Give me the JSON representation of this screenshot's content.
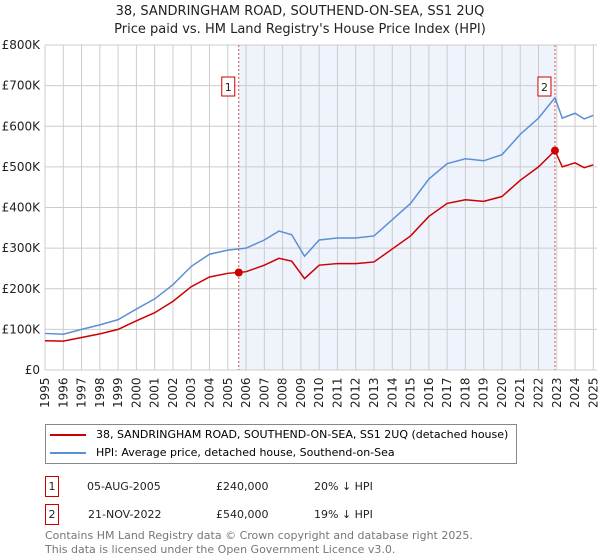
{
  "chart_data": {
    "type": "line",
    "title": "38, SANDRINGHAM ROAD, SOUTHEND-ON-SEA, SS1 2UQ",
    "subtitle": "Price paid vs. HM Land Registry's House Price Index (HPI)",
    "xlim": [
      1995,
      2025.2
    ],
    "ylim": [
      0,
      800000
    ],
    "y_ticks": [
      {
        "v": 0,
        "label": "£0"
      },
      {
        "v": 100000,
        "label": "£100K"
      },
      {
        "v": 200000,
        "label": "£200K"
      },
      {
        "v": 300000,
        "label": "£300K"
      },
      {
        "v": 400000,
        "label": "£400K"
      },
      {
        "v": 500000,
        "label": "£500K"
      },
      {
        "v": 600000,
        "label": "£600K"
      },
      {
        "v": 700000,
        "label": "£700K"
      },
      {
        "v": 800000,
        "label": "£800K"
      }
    ],
    "x_ticks": [
      "1995",
      "1996",
      "1997",
      "1998",
      "1999",
      "2000",
      "2001",
      "2002",
      "2003",
      "2004",
      "2005",
      "2006",
      "2007",
      "2008",
      "2009",
      "2010",
      "2011",
      "2012",
      "2013",
      "2014",
      "2015",
      "2016",
      "2017",
      "2018",
      "2019",
      "2020",
      "2021",
      "2022",
      "2023",
      "2024",
      "2025"
    ],
    "grid": true,
    "legend_placement": "below",
    "series": [
      {
        "name": "38, SANDRINGHAM ROAD, SOUTHEND-ON-SEA, SS1 2UQ (detached house)",
        "color": "#cc0000",
        "x": [
          1995,
          1996,
          1997,
          1998,
          1999,
          2000,
          2001,
          2002,
          2003,
          2004,
          2005,
          2005.6,
          2006,
          2007,
          2007.8,
          2008.5,
          2009.2,
          2010,
          2011,
          2012,
          2013,
          2014,
          2015,
          2016,
          2017,
          2018,
          2019,
          2020,
          2021,
          2022,
          2022.9,
          2023.3,
          2024,
          2024.5,
          2025
        ],
        "y": [
          72000,
          71000,
          80000,
          89000,
          100000,
          121000,
          141000,
          169000,
          205000,
          229000,
          238000,
          240000,
          242000,
          258000,
          275000,
          268000,
          225000,
          258000,
          262000,
          262000,
          266000,
          298000,
          330000,
          378000,
          410000,
          419000,
          415000,
          427000,
          467000,
          500000,
          540000,
          500000,
          510000,
          498000,
          505000
        ]
      },
      {
        "name": "HPI: Average price, detached house, Southend-on-Sea",
        "color": "#5b8fd6",
        "x": [
          1995,
          1996,
          1997,
          1998,
          1999,
          2000,
          2001,
          2002,
          2003,
          2004,
          2005,
          2005.6,
          2006,
          2007,
          2007.8,
          2008.5,
          2009.2,
          2010,
          2011,
          2012,
          2013,
          2014,
          2015,
          2016,
          2017,
          2018,
          2019,
          2020,
          2021,
          2022,
          2022.9,
          2023.3,
          2024,
          2024.5,
          2025
        ],
        "y": [
          90000,
          88000,
          100000,
          111000,
          124000,
          150000,
          175000,
          210000,
          255000,
          285000,
          295000,
          298000,
          300000,
          320000,
          342000,
          333000,
          280000,
          320000,
          325000,
          325000,
          330000,
          370000,
          410000,
          470000,
          508000,
          520000,
          515000,
          530000,
          580000,
          620000,
          670000,
          620000,
          632000,
          618000,
          627000
        ]
      }
    ],
    "sales": [
      {
        "label": "1",
        "x": 2005.6,
        "y": 240000,
        "date": "05-AUG-2005",
        "price": "£240,000",
        "hpi": "20% ↓ HPI"
      },
      {
        "label": "2",
        "x": 2022.9,
        "y": 540000,
        "date": "21-NOV-2022",
        "price": "£540,000",
        "hpi": "19% ↓ HPI"
      }
    ]
  },
  "footer": {
    "line1": "Contains HM Land Registry data © Crown copyright and database right 2025.",
    "line2": "This data is licensed under the Open Government Licence v3.0."
  }
}
